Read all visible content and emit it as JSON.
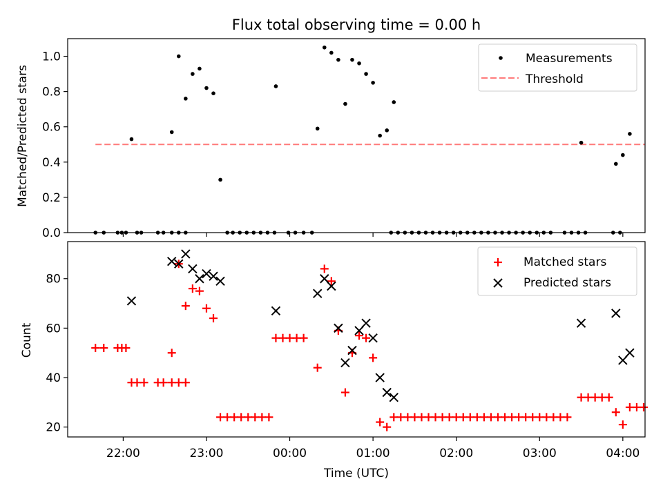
{
  "figure": {
    "title": "Flux total observing time = 0.00 h",
    "xlabel": "Time (UTC)",
    "time_ticks": [
      "22:00",
      "23:00",
      "00:00",
      "01:00",
      "02:00",
      "03:00",
      "04:00"
    ]
  },
  "chart_data": [
    {
      "type": "scatter",
      "title": "Flux total observing time = 0.00 h",
      "xlabel": "",
      "ylabel": "Matched/Predicted stars",
      "xlim": [
        "21:20",
        "04:16"
      ],
      "ylim": [
        0,
        1.1
      ],
      "yticks": [
        "0.0",
        "0.2",
        "0.4",
        "0.6",
        "0.8",
        "1.0"
      ],
      "legend_position": "top-right",
      "legend": [
        "Measurements",
        "Threshold"
      ],
      "series": [
        {
          "name": "Measurements",
          "color": "#000000",
          "marker": "dot",
          "points": [
            [
              "21:40",
              0
            ],
            [
              "21:46",
              0
            ],
            [
              "21:56",
              0
            ],
            [
              "21:59",
              0
            ],
            [
              "22:02",
              0
            ],
            [
              "22:10",
              0
            ],
            [
              "22:13",
              0
            ],
            [
              "22:25",
              0
            ],
            [
              "22:29",
              0
            ],
            [
              "22:35",
              0
            ],
            [
              "22:40",
              0
            ],
            [
              "22:45",
              0
            ],
            [
              "23:15",
              0
            ],
            [
              "23:19",
              0
            ],
            [
              "23:24",
              0
            ],
            [
              "23:29",
              0
            ],
            [
              "23:34",
              0
            ],
            [
              "23:39",
              0
            ],
            [
              "23:44",
              0
            ],
            [
              "23:49",
              0
            ],
            [
              "23:59",
              0
            ],
            [
              "00:04",
              0
            ],
            [
              "00:10",
              0
            ],
            [
              "00:16",
              0
            ],
            [
              "01:13",
              0
            ],
            [
              "01:18",
              0
            ],
            [
              "01:23",
              0
            ],
            [
              "01:28",
              0
            ],
            [
              "01:33",
              0
            ],
            [
              "01:38",
              0
            ],
            [
              "01:43",
              0
            ],
            [
              "01:48",
              0
            ],
            [
              "01:53",
              0
            ],
            [
              "01:58",
              0
            ],
            [
              "02:03",
              0
            ],
            [
              "02:08",
              0
            ],
            [
              "02:13",
              0
            ],
            [
              "02:18",
              0
            ],
            [
              "02:23",
              0
            ],
            [
              "02:28",
              0
            ],
            [
              "02:33",
              0
            ],
            [
              "02:38",
              0
            ],
            [
              "02:43",
              0
            ],
            [
              "02:48",
              0
            ],
            [
              "02:53",
              0
            ],
            [
              "02:58",
              0
            ],
            [
              "03:03",
              0
            ],
            [
              "03:08",
              0
            ],
            [
              "03:18",
              0
            ],
            [
              "03:23",
              0
            ],
            [
              "03:28",
              0
            ],
            [
              "03:33",
              0
            ],
            [
              "03:53",
              0
            ],
            [
              "03:58",
              0
            ],
            [
              "22:06",
              0.53
            ],
            [
              "22:35",
              0.57
            ],
            [
              "22:40",
              1.0
            ],
            [
              "22:45",
              0.76
            ],
            [
              "22:50",
              0.9
            ],
            [
              "22:55",
              0.93
            ],
            [
              "23:00",
              0.82
            ],
            [
              "23:05",
              0.79
            ],
            [
              "23:10",
              0.3
            ],
            [
              "23:50",
              0.83
            ],
            [
              "00:20",
              0.59
            ],
            [
              "00:25",
              1.05
            ],
            [
              "00:30",
              1.02
            ],
            [
              "00:35",
              0.98
            ],
            [
              "00:40",
              0.73
            ],
            [
              "00:45",
              0.98
            ],
            [
              "00:50",
              0.96
            ],
            [
              "00:55",
              0.9
            ],
            [
              "01:00",
              0.85
            ],
            [
              "01:05",
              0.55
            ],
            [
              "01:10",
              0.58
            ],
            [
              "01:15",
              0.74
            ],
            [
              "03:30",
              0.51
            ],
            [
              "03:55",
              0.39
            ],
            [
              "04:00",
              0.44
            ],
            [
              "04:05",
              0.56
            ]
          ]
        },
        {
          "name": "Threshold",
          "color": "#ff7a7a",
          "line_style": "dashed",
          "points": [
            [
              "21:40",
              0.5
            ],
            [
              "04:16",
              0.5
            ]
          ]
        }
      ]
    },
    {
      "type": "scatter",
      "xlabel": "Time (UTC)",
      "ylabel": "Count",
      "xlim": [
        "21:20",
        "04:16"
      ],
      "ylim": [
        16,
        95
      ],
      "yticks": [
        "20",
        "40",
        "60",
        "80"
      ],
      "legend_position": "top-right",
      "legend": [
        "Matched stars",
        "Predicted stars"
      ],
      "series": [
        {
          "name": "Matched stars",
          "color": "#ff0000",
          "marker": "plus",
          "points": [
            [
              "21:40",
              52
            ],
            [
              "21:46",
              52
            ],
            [
              "21:56",
              52
            ],
            [
              "21:59",
              52
            ],
            [
              "22:02",
              52
            ],
            [
              "22:06",
              38
            ],
            [
              "22:10",
              38
            ],
            [
              "22:15",
              38
            ],
            [
              "22:25",
              38
            ],
            [
              "22:29",
              38
            ],
            [
              "22:35",
              38
            ],
            [
              "22:40",
              38
            ],
            [
              "22:45",
              38
            ],
            [
              "22:35",
              50
            ],
            [
              "22:40",
              86
            ],
            [
              "22:45",
              69
            ],
            [
              "22:50",
              76
            ],
            [
              "22:55",
              75
            ],
            [
              "23:00",
              68
            ],
            [
              "23:05",
              64
            ],
            [
              "23:10",
              24
            ],
            [
              "23:15",
              24
            ],
            [
              "23:20",
              24
            ],
            [
              "23:25",
              24
            ],
            [
              "23:30",
              24
            ],
            [
              "23:35",
              24
            ],
            [
              "23:40",
              24
            ],
            [
              "23:45",
              24
            ],
            [
              "23:50",
              56
            ],
            [
              "23:55",
              56
            ],
            [
              "00:00",
              56
            ],
            [
              "00:05",
              56
            ],
            [
              "00:10",
              56
            ],
            [
              "00:20",
              44
            ],
            [
              "00:25",
              84
            ],
            [
              "00:30",
              79
            ],
            [
              "00:35",
              59
            ],
            [
              "00:40",
              34
            ],
            [
              "00:45",
              50
            ],
            [
              "00:50",
              57
            ],
            [
              "00:55",
              56
            ],
            [
              "01:00",
              48
            ],
            [
              "01:05",
              22
            ],
            [
              "01:10",
              20
            ],
            [
              "01:15",
              24
            ],
            [
              "01:20",
              24
            ],
            [
              "01:25",
              24
            ],
            [
              "01:30",
              24
            ],
            [
              "01:35",
              24
            ],
            [
              "01:40",
              24
            ],
            [
              "01:45",
              24
            ],
            [
              "01:50",
              24
            ],
            [
              "01:55",
              24
            ],
            [
              "02:00",
              24
            ],
            [
              "02:05",
              24
            ],
            [
              "02:10",
              24
            ],
            [
              "02:15",
              24
            ],
            [
              "02:20",
              24
            ],
            [
              "02:25",
              24
            ],
            [
              "02:30",
              24
            ],
            [
              "02:35",
              24
            ],
            [
              "02:40",
              24
            ],
            [
              "02:45",
              24
            ],
            [
              "02:50",
              24
            ],
            [
              "02:55",
              24
            ],
            [
              "03:00",
              24
            ],
            [
              "03:05",
              24
            ],
            [
              "03:10",
              24
            ],
            [
              "03:15",
              24
            ],
            [
              "03:20",
              24
            ],
            [
              "03:30",
              32
            ],
            [
              "03:35",
              32
            ],
            [
              "03:40",
              32
            ],
            [
              "03:45",
              32
            ],
            [
              "03:50",
              32
            ],
            [
              "03:55",
              26
            ],
            [
              "04:00",
              21
            ],
            [
              "04:05",
              28
            ],
            [
              "04:10",
              28
            ],
            [
              "04:15",
              28
            ]
          ]
        },
        {
          "name": "Predicted stars",
          "color": "#000000",
          "marker": "x",
          "points": [
            [
              "22:06",
              71
            ],
            [
              "22:35",
              87
            ],
            [
              "22:40",
              86
            ],
            [
              "22:45",
              90
            ],
            [
              "22:50",
              84
            ],
            [
              "22:55",
              80
            ],
            [
              "23:00",
              82
            ],
            [
              "23:05",
              81
            ],
            [
              "23:10",
              79
            ],
            [
              "23:50",
              67
            ],
            [
              "00:20",
              74
            ],
            [
              "00:25",
              80
            ],
            [
              "00:30",
              77
            ],
            [
              "00:35",
              60
            ],
            [
              "00:40",
              46
            ],
            [
              "00:45",
              51
            ],
            [
              "00:50",
              59
            ],
            [
              "00:55",
              62
            ],
            [
              "01:00",
              56
            ],
            [
              "01:05",
              40
            ],
            [
              "01:10",
              34
            ],
            [
              "01:15",
              32
            ],
            [
              "03:30",
              62
            ],
            [
              "03:55",
              66
            ],
            [
              "04:00",
              47
            ],
            [
              "04:05",
              50
            ]
          ]
        }
      ]
    }
  ]
}
